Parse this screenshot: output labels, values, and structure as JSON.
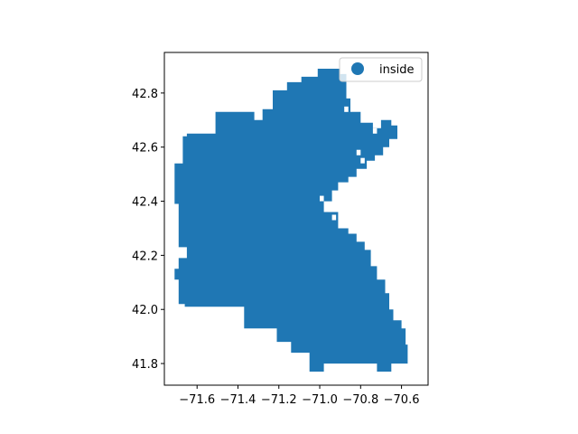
{
  "chart_data": {
    "type": "scatter",
    "title": "",
    "xlabel": "",
    "ylabel": "",
    "xlim": [
      -71.76,
      -70.47
    ],
    "ylim": [
      41.72,
      42.95
    ],
    "x_ticks": [
      {
        "value": -71.6,
        "label": "−71.6"
      },
      {
        "value": -71.4,
        "label": "−71.4"
      },
      {
        "value": -71.2,
        "label": "−71.2"
      },
      {
        "value": -71.0,
        "label": "−71.0"
      },
      {
        "value": -70.8,
        "label": "−70.8"
      },
      {
        "value": -70.6,
        "label": "−70.6"
      }
    ],
    "y_ticks": [
      {
        "value": 41.8,
        "label": "41.8"
      },
      {
        "value": 42.0,
        "label": "42.0"
      },
      {
        "value": 42.2,
        "label": "42.2"
      },
      {
        "value": 42.4,
        "label": "42.4"
      },
      {
        "value": 42.6,
        "label": "42.6"
      },
      {
        "value": 42.8,
        "label": "42.8"
      }
    ],
    "grid": false,
    "legend_position": "top-right",
    "marker": "square",
    "series": [
      {
        "name": "inside",
        "color": "#1f77b4",
        "cell_width": 0.02,
        "cell_height": 0.02,
        "region_outline": [
          [
            -71.51,
            42.73
          ],
          [
            -71.32,
            42.73
          ],
          [
            -71.32,
            42.7
          ],
          [
            -71.28,
            42.7
          ],
          [
            -71.28,
            42.74
          ],
          [
            -71.23,
            42.74
          ],
          [
            -71.23,
            42.81
          ],
          [
            -71.16,
            42.81
          ],
          [
            -71.16,
            42.84
          ],
          [
            -71.09,
            42.84
          ],
          [
            -71.09,
            42.86
          ],
          [
            -71.01,
            42.86
          ],
          [
            -71.01,
            42.89
          ],
          [
            -70.9,
            42.89
          ],
          [
            -70.9,
            42.87
          ],
          [
            -70.87,
            42.87
          ],
          [
            -70.87,
            42.78
          ],
          [
            -70.85,
            42.78
          ],
          [
            -70.85,
            42.73
          ],
          [
            -70.8,
            42.73
          ],
          [
            -70.8,
            42.69
          ],
          [
            -70.74,
            42.69
          ],
          [
            -70.74,
            42.67
          ],
          [
            -70.7,
            42.67
          ],
          [
            -70.7,
            42.7
          ],
          [
            -70.65,
            42.7
          ],
          [
            -70.65,
            42.68
          ],
          [
            -70.62,
            42.68
          ],
          [
            -70.62,
            42.63
          ],
          [
            -70.66,
            42.63
          ],
          [
            -70.66,
            42.6
          ],
          [
            -70.69,
            42.6
          ],
          [
            -70.69,
            42.57
          ],
          [
            -70.73,
            42.57
          ],
          [
            -70.73,
            42.55
          ],
          [
            -70.77,
            42.55
          ],
          [
            -70.77,
            42.52
          ],
          [
            -70.82,
            42.52
          ],
          [
            -70.82,
            42.49
          ],
          [
            -70.86,
            42.49
          ],
          [
            -70.86,
            42.47
          ],
          [
            -70.91,
            42.47
          ],
          [
            -70.91,
            42.44
          ],
          [
            -70.94,
            42.44
          ],
          [
            -70.94,
            42.4
          ],
          [
            -70.98,
            42.4
          ],
          [
            -70.98,
            42.36
          ],
          [
            -70.91,
            42.36
          ],
          [
            -70.91,
            42.3
          ],
          [
            -70.86,
            42.3
          ],
          [
            -70.86,
            42.28
          ],
          [
            -70.82,
            42.28
          ],
          [
            -70.82,
            42.25
          ],
          [
            -70.78,
            42.25
          ],
          [
            -70.78,
            42.22
          ],
          [
            -70.75,
            42.22
          ],
          [
            -70.75,
            42.16
          ],
          [
            -70.72,
            42.16
          ],
          [
            -70.72,
            42.11
          ],
          [
            -70.68,
            42.11
          ],
          [
            -70.68,
            42.06
          ],
          [
            -70.66,
            42.06
          ],
          [
            -70.66,
            42.0
          ],
          [
            -70.64,
            42.0
          ],
          [
            -70.64,
            41.96
          ],
          [
            -70.6,
            41.96
          ],
          [
            -70.6,
            41.93
          ],
          [
            -70.58,
            41.93
          ],
          [
            -70.58,
            41.87
          ],
          [
            -70.57,
            41.87
          ],
          [
            -70.57,
            41.8
          ],
          [
            -70.65,
            41.8
          ],
          [
            -70.65,
            41.77
          ],
          [
            -70.72,
            41.77
          ],
          [
            -70.72,
            41.8
          ],
          [
            -70.98,
            41.8
          ],
          [
            -70.98,
            41.77
          ],
          [
            -71.05,
            41.77
          ],
          [
            -71.05,
            41.84
          ],
          [
            -71.14,
            41.84
          ],
          [
            -71.14,
            41.88
          ],
          [
            -71.21,
            41.88
          ],
          [
            -71.21,
            41.93
          ],
          [
            -71.37,
            41.93
          ],
          [
            -71.37,
            42.01
          ],
          [
            -71.66,
            42.01
          ],
          [
            -71.66,
            42.02
          ],
          [
            -71.69,
            42.02
          ],
          [
            -71.69,
            42.11
          ],
          [
            -71.71,
            42.11
          ],
          [
            -71.71,
            42.15
          ],
          [
            -71.69,
            42.15
          ],
          [
            -71.69,
            42.19
          ],
          [
            -71.65,
            42.19
          ],
          [
            -71.65,
            42.23
          ],
          [
            -71.69,
            42.23
          ],
          [
            -71.69,
            42.39
          ],
          [
            -71.71,
            42.39
          ],
          [
            -71.71,
            42.54
          ],
          [
            -71.67,
            42.54
          ],
          [
            -71.67,
            42.64
          ],
          [
            -71.65,
            42.64
          ],
          [
            -71.65,
            42.65
          ],
          [
            -71.51,
            42.65
          ]
        ],
        "notch_cells": [
          [
            -71.0,
            42.4
          ],
          [
            -70.96,
            42.36
          ],
          [
            -70.94,
            42.33
          ],
          [
            -70.74,
            42.65
          ],
          [
            -70.82,
            42.57
          ],
          [
            -70.8,
            42.54
          ],
          [
            -70.88,
            42.73
          ]
        ]
      }
    ]
  }
}
